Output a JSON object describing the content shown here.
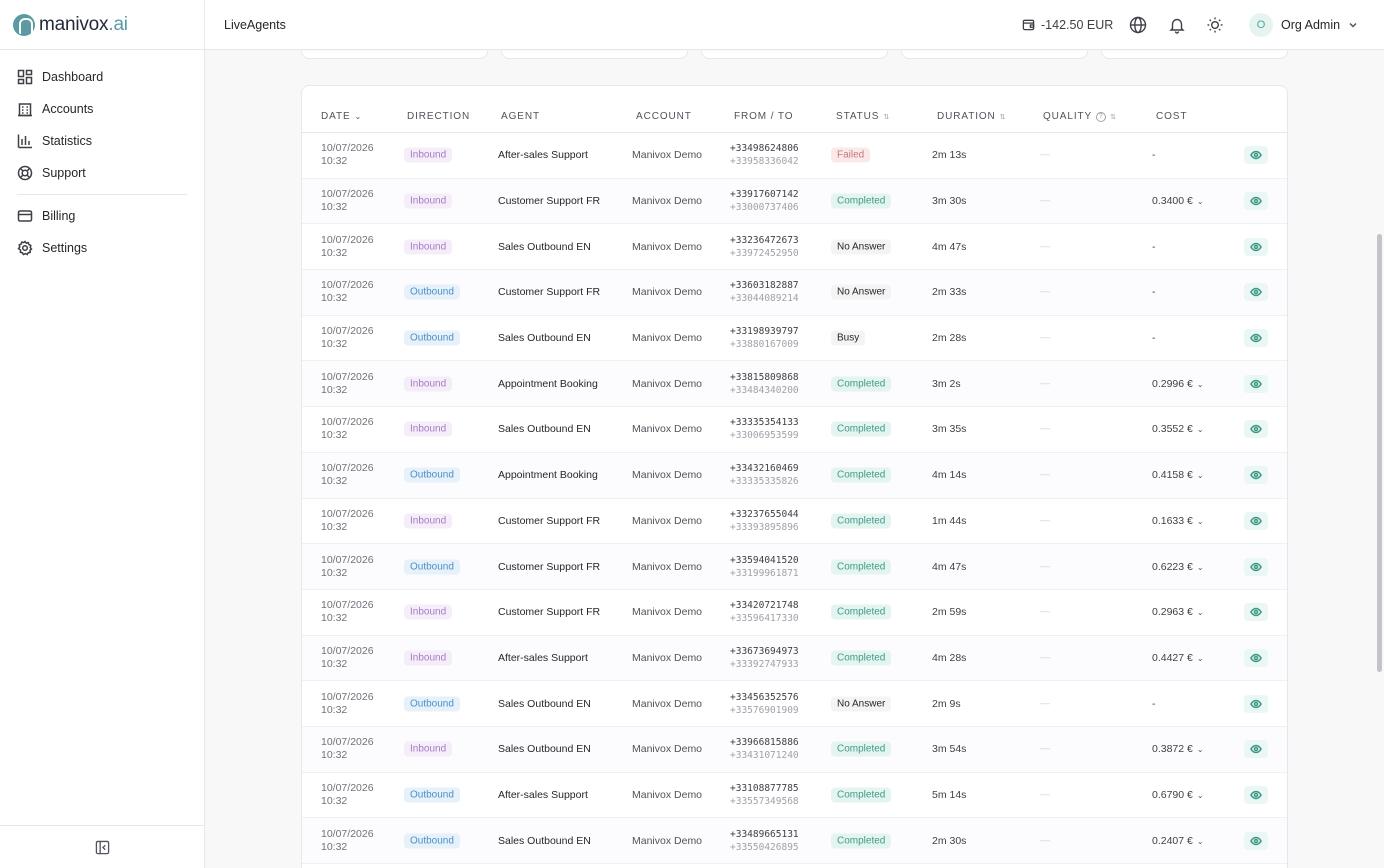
{
  "brand": {
    "name": "manivox",
    "suffix": ".ai",
    "accent": "#5a9aa3"
  },
  "sidebar": {
    "items": [
      {
        "label": "Dashboard",
        "icon": "dashboard-icon"
      },
      {
        "label": "Accounts",
        "icon": "building-icon"
      },
      {
        "label": "Statistics",
        "icon": "bar-chart-icon"
      },
      {
        "label": "Support",
        "icon": "lifebuoy-icon"
      },
      {
        "label": "Billing",
        "icon": "credit-card-icon"
      },
      {
        "label": "Settings",
        "icon": "gear-icon"
      }
    ],
    "collapse_icon": "sidebar-collapse-icon"
  },
  "header": {
    "breadcrumb": "LiveAgents",
    "balance": "-142.50 EUR",
    "user": {
      "initial": "O",
      "name": "Org Admin"
    }
  },
  "table": {
    "columns": {
      "date": "DATE",
      "direction": "DIRECTION",
      "agent": "AGENT",
      "account": "ACCOUNT",
      "from_to": "FROM / TO",
      "status": "STATUS",
      "duration": "DURATION",
      "quality": "QUALITY",
      "cost": "COST"
    },
    "rows": [
      {
        "date": "10/07/2026",
        "time": "10:32",
        "direction": "Inbound",
        "agent": "After-sales Support",
        "account": "Manivox Demo",
        "from": "+33498624806",
        "to": "+33958336042",
        "status": "Failed",
        "duration": "2m 13s",
        "quality": "—",
        "cost": "-"
      },
      {
        "date": "10/07/2026",
        "time": "10:32",
        "direction": "Inbound",
        "agent": "Customer Support FR",
        "account": "Manivox Demo",
        "from": "+33917607142",
        "to": "+33000737406",
        "status": "Completed",
        "duration": "3m 30s",
        "quality": "—",
        "cost": "0.3400 €"
      },
      {
        "date": "10/07/2026",
        "time": "10:32",
        "direction": "Inbound",
        "agent": "Sales Outbound EN",
        "account": "Manivox Demo",
        "from": "+33236472673",
        "to": "+33972452950",
        "status": "No Answer",
        "duration": "4m 47s",
        "quality": "—",
        "cost": "-"
      },
      {
        "date": "10/07/2026",
        "time": "10:32",
        "direction": "Outbound",
        "agent": "Customer Support FR",
        "account": "Manivox Demo",
        "from": "+33603182887",
        "to": "+33044089214",
        "status": "No Answer",
        "duration": "2m 33s",
        "quality": "—",
        "cost": "-"
      },
      {
        "date": "10/07/2026",
        "time": "10:32",
        "direction": "Outbound",
        "agent": "Sales Outbound EN",
        "account": "Manivox Demo",
        "from": "+33198939797",
        "to": "+33880167009",
        "status": "Busy",
        "duration": "2m 28s",
        "quality": "—",
        "cost": "-"
      },
      {
        "date": "10/07/2026",
        "time": "10:32",
        "direction": "Inbound",
        "agent": "Appointment Booking",
        "account": "Manivox Demo",
        "from": "+33815809868",
        "to": "+33484340200",
        "status": "Completed",
        "duration": "3m 2s",
        "quality": "—",
        "cost": "0.2996 €"
      },
      {
        "date": "10/07/2026",
        "time": "10:32",
        "direction": "Inbound",
        "agent": "Sales Outbound EN",
        "account": "Manivox Demo",
        "from": "+33335354133",
        "to": "+33006953599",
        "status": "Completed",
        "duration": "3m 35s",
        "quality": "—",
        "cost": "0.3552 €"
      },
      {
        "date": "10/07/2026",
        "time": "10:32",
        "direction": "Outbound",
        "agent": "Appointment Booking",
        "account": "Manivox Demo",
        "from": "+33432160469",
        "to": "+33335335826",
        "status": "Completed",
        "duration": "4m 14s",
        "quality": "—",
        "cost": "0.4158 €"
      },
      {
        "date": "10/07/2026",
        "time": "10:32",
        "direction": "Inbound",
        "agent": "Customer Support FR",
        "account": "Manivox Demo",
        "from": "+33237655044",
        "to": "+33393895896",
        "status": "Completed",
        "duration": "1m 44s",
        "quality": "—",
        "cost": "0.1633 €"
      },
      {
        "date": "10/07/2026",
        "time": "10:32",
        "direction": "Outbound",
        "agent": "Customer Support FR",
        "account": "Manivox Demo",
        "from": "+33594041520",
        "to": "+33199961871",
        "status": "Completed",
        "duration": "4m 47s",
        "quality": "—",
        "cost": "0.6223 €"
      },
      {
        "date": "10/07/2026",
        "time": "10:32",
        "direction": "Inbound",
        "agent": "Customer Support FR",
        "account": "Manivox Demo",
        "from": "+33420721748",
        "to": "+33596417330",
        "status": "Completed",
        "duration": "2m 59s",
        "quality": "—",
        "cost": "0.2963 €"
      },
      {
        "date": "10/07/2026",
        "time": "10:32",
        "direction": "Inbound",
        "agent": "After-sales Support",
        "account": "Manivox Demo",
        "from": "+33673694973",
        "to": "+33392747933",
        "status": "Completed",
        "duration": "4m 28s",
        "quality": "—",
        "cost": "0.4427 €"
      },
      {
        "date": "10/07/2026",
        "time": "10:32",
        "direction": "Outbound",
        "agent": "Sales Outbound EN",
        "account": "Manivox Demo",
        "from": "+33456352576",
        "to": "+33576901909",
        "status": "No Answer",
        "duration": "2m 9s",
        "quality": "—",
        "cost": "-"
      },
      {
        "date": "10/07/2026",
        "time": "10:32",
        "direction": "Inbound",
        "agent": "Sales Outbound EN",
        "account": "Manivox Demo",
        "from": "+33966815886",
        "to": "+33431071240",
        "status": "Completed",
        "duration": "3m 54s",
        "quality": "—",
        "cost": "0.3872 €"
      },
      {
        "date": "10/07/2026",
        "time": "10:32",
        "direction": "Outbound",
        "agent": "After-sales Support",
        "account": "Manivox Demo",
        "from": "+33108877785",
        "to": "+33557349568",
        "status": "Completed",
        "duration": "5m 14s",
        "quality": "—",
        "cost": "0.6790 €"
      },
      {
        "date": "10/07/2026",
        "time": "10:32",
        "direction": "Outbound",
        "agent": "Sales Outbound EN",
        "account": "Manivox Demo",
        "from": "+33489665131",
        "to": "+33550426895",
        "status": "Completed",
        "duration": "2m 30s",
        "quality": "—",
        "cost": "0.2407 €"
      }
    ]
  }
}
